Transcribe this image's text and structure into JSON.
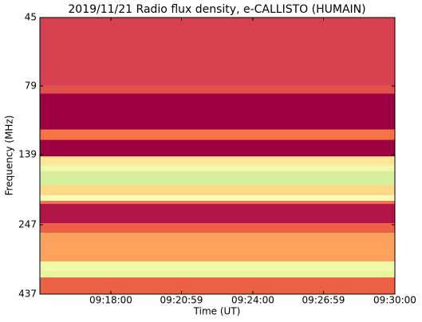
{
  "chart_data": {
    "type": "spectrogram",
    "title": "2019/11/21  Radio flux density, e-CALLISTO (HUMAIN)",
    "x_label": "Time (UT)",
    "y_label": "Frequency (MHz)",
    "xlim": [
      "09:15:00",
      "09:30:00"
    ],
    "xticks": [
      "09:18:00",
      "09:20:59",
      "09:24:00",
      "09:26:59",
      "09:30:00"
    ],
    "ylim": [
      45,
      437
    ],
    "yticks": [
      45,
      79,
      139,
      247,
      437
    ],
    "y_log": true,
    "y_inverted": true,
    "colormap": [
      "#9e0142",
      "#d53e4f",
      "#f46d43",
      "#fdae61",
      "#fee08b",
      "#ffffbf",
      "#e6f598",
      "#abdda4"
    ],
    "band_lo": [
      45,
      79,
      84,
      113,
      123,
      141,
      152,
      159,
      178,
      194,
      203,
      208,
      244,
      264,
      334,
      361,
      381
    ],
    "band_hi": [
      79,
      84,
      113,
      123,
      141,
      152,
      159,
      178,
      194,
      203,
      208,
      244,
      264,
      334,
      361,
      381,
      437
    ],
    "levels": [
      0.15,
      0.2,
      0.0,
      0.3,
      0.0,
      0.6,
      0.8,
      0.9,
      0.55,
      0.75,
      0.3,
      0.05,
      0.25,
      0.4,
      0.8,
      0.85,
      0.25
    ]
  }
}
